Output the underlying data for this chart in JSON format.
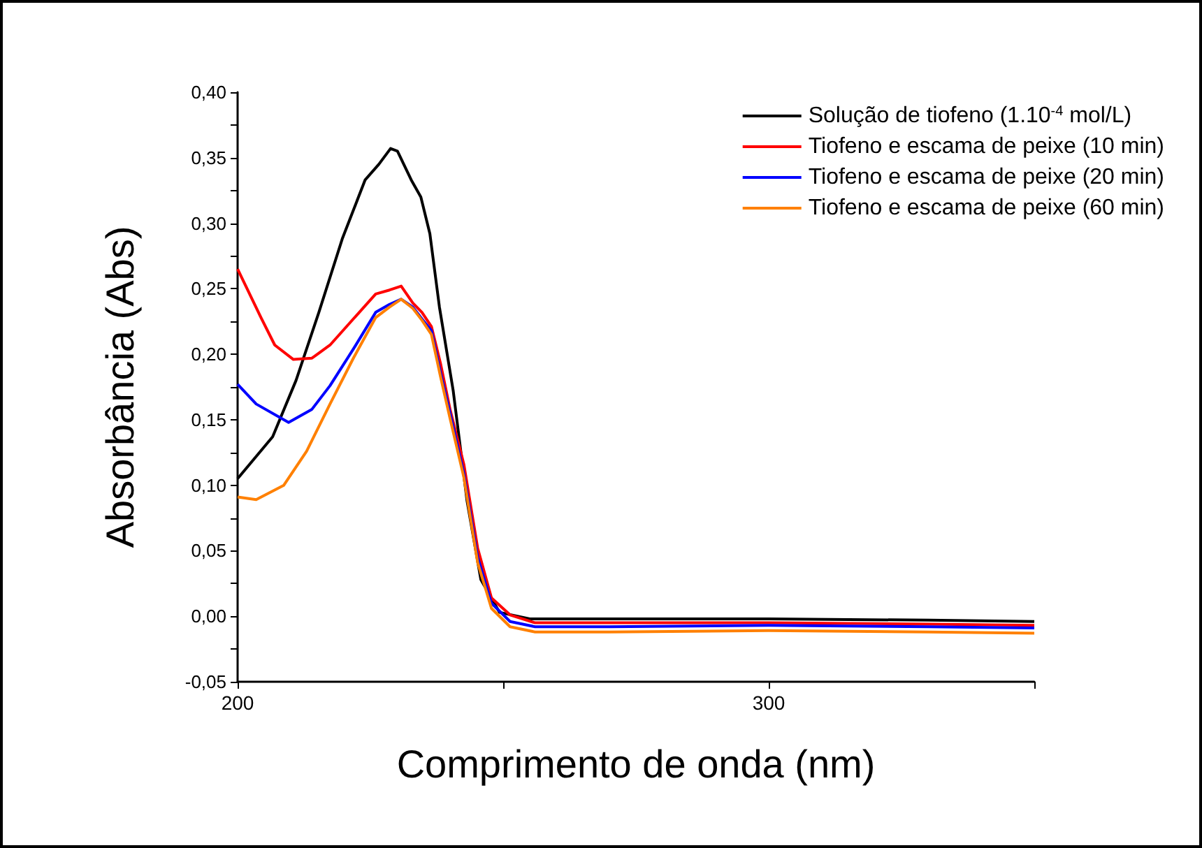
{
  "chart_data": {
    "type": "line",
    "xlabel": "Comprimento de onda (nm)",
    "ylabel": "Absorbância (Abs)",
    "xlim": [
      200,
      350
    ],
    "xticks": [
      200,
      {
        "value": 250,
        "label": null
      },
      300,
      {
        "value": 350,
        "label": null
      }
    ],
    "ylim": [
      -0.05,
      0.4
    ],
    "yticks": [
      {
        "value": -0.05,
        "label": "-0,05"
      },
      {
        "value": -0.025,
        "label": null
      },
      {
        "value": 0,
        "label": "0,00"
      },
      {
        "value": 0.025,
        "label": null
      },
      {
        "value": 0.05,
        "label": "0,05"
      },
      {
        "value": 0.075,
        "label": null
      },
      {
        "value": 0.1,
        "label": "0,10"
      },
      {
        "value": 0.125,
        "label": null
      },
      {
        "value": 0.15,
        "label": "0,15"
      },
      {
        "value": 0.175,
        "label": null
      },
      {
        "value": 0.2,
        "label": "0,20"
      },
      {
        "value": 0.225,
        "label": null
      },
      {
        "value": 0.25,
        "label": "0,25"
      },
      {
        "value": 0.275,
        "label": null
      },
      {
        "value": 0.3,
        "label": "0,30"
      },
      {
        "value": 0.325,
        "label": null
      },
      {
        "value": 0.35,
        "label": "0,35"
      },
      {
        "value": 0.375,
        "label": null
      },
      {
        "value": 0.4,
        "label": "0,40"
      }
    ],
    "grid": false,
    "legend": "top right",
    "series": [
      {
        "name": "Solução de tiofeno (1.10$^{-4}$ mol/L)",
        "color": "#000000",
        "x": [
          200,
          206.6,
          211,
          215.3,
          219.7,
          224,
          226.6,
          228.8,
          230.1,
          232.7,
          234.5,
          236.2,
          238,
          240.6,
          243.2,
          245.8,
          249.3,
          255,
          270,
          300,
          330,
          350
        ],
        "values": [
          0.105,
          0.137,
          0.18,
          0.232,
          0.288,
          0.333,
          0.345,
          0.357,
          0.355,
          0.333,
          0.32,
          0.292,
          0.236,
          0.172,
          0.088,
          0.028,
          0.003,
          -0.002,
          -0.002,
          -0.002,
          -0.003,
          -0.004
        ]
      },
      {
        "name": "Tiofeno e escama de peixe (10 min)",
        "color": "#ff0000",
        "x": [
          200,
          204.4,
          207,
          210.5,
          214,
          217.4,
          221.8,
          226,
          228.6,
          230.8,
          233,
          234.7,
          236.5,
          238.2,
          240,
          242.6,
          245.2,
          247.8,
          251.3,
          256,
          270,
          300,
          330,
          350
        ],
        "values": [
          0.265,
          0.228,
          0.207,
          0.196,
          0.197,
          0.207,
          0.227,
          0.246,
          0.249,
          0.252,
          0.239,
          0.232,
          0.221,
          0.193,
          0.158,
          0.116,
          0.052,
          0.014,
          0.001,
          -0.005,
          -0.005,
          -0.005,
          -0.006,
          -0.007
        ]
      },
      {
        "name": "Tiofeno e escama de peixe (20 min)",
        "color": "#0000ff",
        "x": [
          200,
          203.5,
          209.6,
          214,
          217.4,
          221.8,
          226,
          228.6,
          230.8,
          233,
          234.7,
          236.5,
          238.2,
          240,
          242.6,
          245.2,
          247.8,
          251.3,
          256,
          270,
          300,
          330,
          350
        ],
        "values": [
          0.177,
          0.162,
          0.148,
          0.158,
          0.176,
          0.204,
          0.232,
          0.238,
          0.242,
          0.236,
          0.227,
          0.218,
          0.186,
          0.155,
          0.109,
          0.045,
          0.01,
          -0.004,
          -0.008,
          -0.008,
          -0.007,
          -0.008,
          -0.009
        ]
      },
      {
        "name": "Tiofeno e escama de peixe (60 min)",
        "color": "#ff8000",
        "x": [
          200,
          203.5,
          208.7,
          213,
          217.4,
          221.8,
          226,
          228.6,
          230.8,
          233,
          234.7,
          236.5,
          238.2,
          240,
          242.6,
          245.2,
          247.8,
          251.3,
          256,
          270,
          300,
          330,
          350
        ],
        "values": [
          0.091,
          0.089,
          0.1,
          0.126,
          0.162,
          0.197,
          0.228,
          0.236,
          0.242,
          0.235,
          0.226,
          0.215,
          0.183,
          0.151,
          0.106,
          0.041,
          0.006,
          -0.008,
          -0.012,
          -0.012,
          -0.011,
          -0.012,
          -0.013
        ]
      }
    ]
  }
}
